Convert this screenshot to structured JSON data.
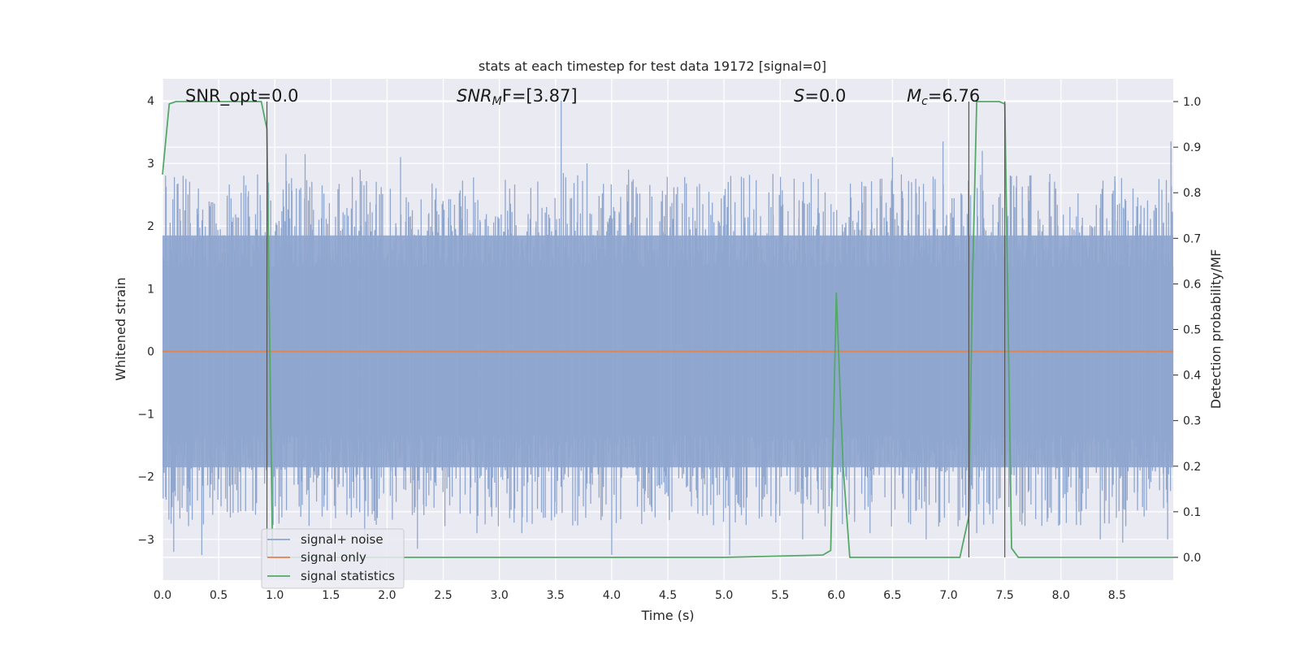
{
  "chart_data": {
    "type": "line",
    "title": "stats at each timestep for test data 19172 [signal=0]",
    "xlabel": "Time (s)",
    "ylabel_left": "Whitened strain",
    "ylabel_right": "Detection probability/MF",
    "xlim": [
      0,
      9.0
    ],
    "ylim_left": [
      -3.65,
      4.35
    ],
    "ylim_right": [
      -0.05,
      1.05
    ],
    "xticks": [
      "0.0",
      "0.5",
      "1.0",
      "1.5",
      "2.0",
      "2.5",
      "3.0",
      "3.5",
      "4.0",
      "4.5",
      "5.0",
      "5.5",
      "6.0",
      "6.5",
      "7.0",
      "7.5",
      "8.0",
      "8.5"
    ],
    "yticks_left": [
      "−3",
      "−2",
      "−1",
      "0",
      "1",
      "2",
      "3",
      "4"
    ],
    "yticks_right": [
      "0.0",
      "0.1",
      "0.2",
      "0.3",
      "0.4",
      "0.5",
      "0.6",
      "0.7",
      "0.8",
      "0.9",
      "1.0"
    ],
    "grid": true,
    "legend_position": "lower-left",
    "annotations": {
      "snr_opt": "SNR_opt=0.0",
      "snr_mf_pre": "SNR",
      "snr_mf_sub": "M",
      "snr_mf_post": "F=[3.87]",
      "s_pre": "S",
      "s_post": "=0.0",
      "mc_pre": "M",
      "mc_sub": "c",
      "mc_post": "=6.76"
    },
    "series": [
      {
        "name": "signal+ noise",
        "color": "#8fa6cf",
        "axis": "left",
        "style": "noise",
        "band_lower": -1.85,
        "band_upper": 1.85,
        "peaks": [
          [
            1.1,
            3.15
          ],
          [
            1.27,
            3.15
          ],
          [
            1.76,
            2.9
          ],
          [
            2.12,
            3.1
          ],
          [
            3.55,
            4.0
          ],
          [
            3.78,
            3.0
          ],
          [
            4.15,
            2.9
          ],
          [
            5.06,
            2.8
          ],
          [
            6.5,
            3.1
          ],
          [
            6.95,
            3.35
          ],
          [
            7.3,
            3.2
          ],
          [
            8.98,
            3.35
          ],
          [
            0.32,
            2.6
          ]
        ],
        "troughs": [
          [
            0.35,
            -3.25
          ],
          [
            0.1,
            -3.2
          ],
          [
            2.27,
            -3.15
          ],
          [
            2.8,
            -2.9
          ],
          [
            3.2,
            -2.9
          ],
          [
            4.0,
            -3.25
          ],
          [
            5.05,
            -3.25
          ],
          [
            5.7,
            -3.0
          ],
          [
            6.3,
            -2.9
          ],
          [
            6.8,
            -3.0
          ],
          [
            7.25,
            -2.9
          ],
          [
            8.35,
            -3.0
          ],
          [
            8.55,
            -3.05
          ],
          [
            8.95,
            -3.0
          ],
          [
            1.8,
            -3.0
          ]
        ]
      },
      {
        "name": "signal only",
        "color": "#dd8452",
        "axis": "left",
        "x": [
          0,
          9.0
        ],
        "y": [
          0,
          0
        ]
      },
      {
        "name": "signal statistics",
        "color": "#55a868",
        "axis": "right",
        "x": [
          0,
          0.06,
          0.12,
          0.5,
          0.88,
          0.93,
          0.98,
          1.1,
          2.0,
          3.0,
          4.0,
          5.0,
          5.88,
          5.95,
          6.0,
          6.06,
          6.12,
          6.5,
          7.1,
          7.18,
          7.21,
          7.25,
          7.3,
          7.45,
          7.5,
          7.56,
          7.62,
          7.8,
          8.5,
          9.0
        ],
        "y": [
          0.84,
          0.995,
          1.0,
          1.0,
          1.0,
          0.94,
          0.0,
          0.0,
          0.0,
          0.0,
          0.0,
          0.0,
          0.005,
          0.015,
          0.58,
          0.2,
          0.0,
          0.0,
          0.0,
          0.09,
          0.58,
          1.0,
          1.0,
          1.0,
          0.995,
          0.02,
          0.0,
          0.0,
          0.0,
          0.0
        ]
      }
    ],
    "vertical_markers": [
      {
        "x": 0.93,
        "color": "#555555"
      },
      {
        "x": 7.18,
        "color": "#555555"
      },
      {
        "x": 7.5,
        "color": "#555555"
      }
    ]
  }
}
